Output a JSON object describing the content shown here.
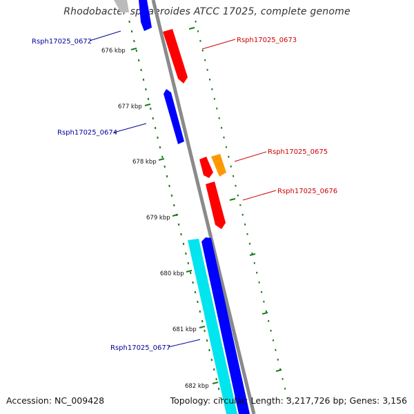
{
  "title": "Rhodobacter sphaeroides ATCC 17025, complete genome",
  "footer": {
    "accession": "Accession: NC_009428",
    "summary": "Topology: circular; Length: 3,217,726 bp; Genes: 3,156"
  },
  "colors": {
    "backbone": "#8a8a8a",
    "tick": "#1a7a1a",
    "forward_gene": "#ff0000",
    "reverse_gene": "#0000ff",
    "orange_gene": "#ff9900",
    "cyan_gene": "#00ffff",
    "forward_label": "#cc0000",
    "reverse_label": "#000099"
  },
  "ruler_labels": [
    "676 kbp",
    "677 kbp",
    "678 kbp",
    "679 kbp",
    "680 kbp",
    "681 kbp",
    "682 kbp"
  ],
  "gene_labels": {
    "g0672": "Rsph17025_0672",
    "g0673": "Rsph17025_0673",
    "g0674": "Rsph17025_0674",
    "g0675": "Rsph17025_0675",
    "g0676": "Rsph17025_0676",
    "g0677": "Rsph17025_0677"
  }
}
